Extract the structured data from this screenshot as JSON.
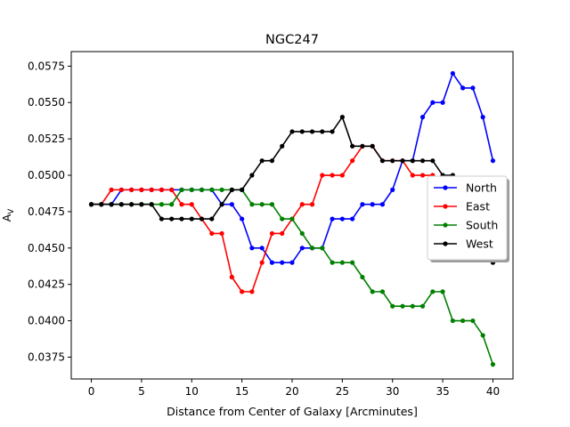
{
  "chart_data": {
    "type": "line",
    "title": "NGC247",
    "xlabel": "Distance from Center of Galaxy [Arcminutes]",
    "ylabel": "A_V",
    "xlim": [
      -2,
      42
    ],
    "ylim": [
      0.036,
      0.0585
    ],
    "xticks": [
      0,
      5,
      10,
      15,
      20,
      25,
      30,
      35,
      40
    ],
    "yticks": [
      0.0375,
      0.04,
      0.0425,
      0.045,
      0.0475,
      0.05,
      0.0525,
      0.055,
      0.0575
    ],
    "ytick_labels": [
      "0.0375",
      "0.0400",
      "0.0425",
      "0.0450",
      "0.0475",
      "0.0500",
      "0.0525",
      "0.0550",
      "0.0575"
    ],
    "grid": false,
    "legend_position": "center-right",
    "x": [
      0,
      1,
      2,
      3,
      4,
      5,
      6,
      7,
      8,
      9,
      10,
      11,
      12,
      13,
      14,
      15,
      16,
      17,
      18,
      19,
      20,
      21,
      22,
      23,
      24,
      25,
      26,
      27,
      28,
      29,
      30,
      31,
      32,
      33,
      34,
      35,
      36,
      37,
      38,
      39,
      40
    ],
    "series": [
      {
        "name": "North",
        "color": "#0000ff",
        "values": [
          0.048,
          0.048,
          0.048,
          0.049,
          0.049,
          0.049,
          0.049,
          0.049,
          0.049,
          0.049,
          0.049,
          0.049,
          0.049,
          0.048,
          0.048,
          0.047,
          0.045,
          0.045,
          0.044,
          0.044,
          0.044,
          0.045,
          0.045,
          0.045,
          0.047,
          0.047,
          0.047,
          0.048,
          0.048,
          0.048,
          0.049,
          0.051,
          0.051,
          0.054,
          0.055,
          0.055,
          0.057,
          0.056,
          0.056,
          0.054,
          0.051
        ]
      },
      {
        "name": "East",
        "color": "#ff0000",
        "values": [
          0.048,
          0.048,
          0.049,
          0.049,
          0.049,
          0.049,
          0.049,
          0.049,
          0.049,
          0.048,
          0.048,
          0.047,
          0.046,
          0.046,
          0.043,
          0.042,
          0.042,
          0.044,
          0.046,
          0.046,
          0.047,
          0.048,
          0.048,
          0.05,
          0.05,
          0.05,
          0.051,
          0.052,
          0.052,
          0.051,
          0.051,
          0.051,
          0.05,
          0.05,
          0.05,
          0.049,
          null,
          null,
          null,
          null,
          null
        ]
      },
      {
        "name": "South",
        "color": "#008000",
        "values": [
          0.048,
          0.048,
          0.048,
          0.048,
          0.048,
          0.048,
          0.048,
          0.048,
          0.048,
          0.049,
          0.049,
          0.049,
          0.049,
          0.049,
          0.049,
          0.049,
          0.048,
          0.048,
          0.048,
          0.047,
          0.047,
          0.046,
          0.045,
          0.045,
          0.044,
          0.044,
          0.044,
          0.043,
          0.042,
          0.042,
          0.041,
          0.041,
          0.041,
          0.041,
          0.042,
          0.042,
          0.04,
          0.04,
          0.04,
          0.039,
          0.037
        ]
      },
      {
        "name": "West",
        "color": "#000000",
        "values": [
          0.048,
          0.048,
          0.048,
          0.048,
          0.048,
          0.048,
          0.048,
          0.047,
          0.047,
          0.047,
          0.047,
          0.047,
          0.047,
          0.048,
          0.049,
          0.049,
          0.05,
          0.051,
          0.051,
          0.052,
          0.053,
          0.053,
          0.053,
          0.053,
          0.053,
          0.054,
          0.052,
          0.052,
          0.052,
          0.051,
          0.051,
          0.051,
          0.051,
          0.051,
          0.051,
          0.05,
          0.05,
          null,
          null,
          null,
          0.044
        ]
      }
    ]
  }
}
